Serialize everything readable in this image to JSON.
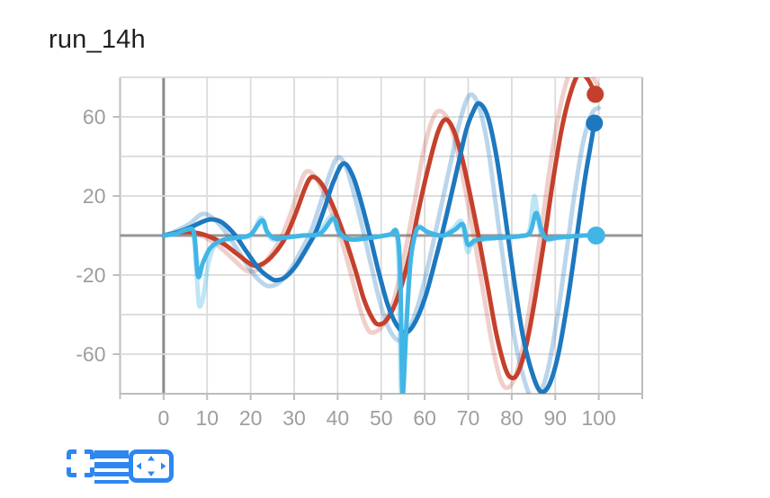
{
  "title": "run_14h",
  "toolbar": {
    "icon_color": "#2e86f0",
    "buttons": [
      {
        "name": "fullscreen"
      },
      {
        "name": "smoothing-lines"
      },
      {
        "name": "fit-to-frame"
      }
    ]
  },
  "chart_data": {
    "type": "line",
    "title": "run_14h",
    "grid": true,
    "legend_position": "none",
    "x_axis": {
      "min": -10,
      "max": 110,
      "gridline_step": 10,
      "ticks": [
        0,
        10,
        20,
        30,
        40,
        50,
        60,
        70,
        80,
        90,
        100
      ],
      "tick_labels": [
        "0",
        "10",
        "20",
        "30",
        "40",
        "50",
        "60",
        "70",
        "80",
        "90",
        "100"
      ]
    },
    "y_axis": {
      "min": -80,
      "max": 80,
      "gridline_step": 20,
      "ticks": [
        60,
        20,
        -20,
        -60
      ],
      "tick_labels": [
        "60",
        "20",
        "-20",
        "-60"
      ]
    },
    "style": {
      "grid_color": "#dadada",
      "border_color": "#bdbdbd",
      "zero_line_color": "#969696",
      "x0_line_color": "#8a8a8a",
      "tick_label_color": "#9e9e9e",
      "tick_font_size": 23
    },
    "series": [
      {
        "name": "run-red-original",
        "color": "#c5402c",
        "opacity": 0.25,
        "width": 5,
        "points": [
          [
            0,
            0
          ],
          [
            2,
            1
          ],
          [
            4,
            2.2
          ],
          [
            7,
            1.5
          ],
          [
            10,
            -1.5
          ],
          [
            13,
            -6
          ],
          [
            16,
            -12
          ],
          [
            19.3,
            -18
          ],
          [
            22,
            -16.5
          ],
          [
            24.5,
            -10
          ],
          [
            27,
            -1
          ],
          [
            29.5,
            13
          ],
          [
            31.5,
            27
          ],
          [
            33,
            32.5
          ],
          [
            35,
            29
          ],
          [
            37.5,
            18
          ],
          [
            40.5,
            0
          ],
          [
            43,
            -19
          ],
          [
            45,
            -36
          ],
          [
            46.8,
            -47
          ],
          [
            48.3,
            -49
          ],
          [
            50.5,
            -45
          ],
          [
            53,
            -32
          ],
          [
            55.5,
            -8
          ],
          [
            57.5,
            15
          ],
          [
            59.5,
            40
          ],
          [
            61.5,
            57
          ],
          [
            63.3,
            63
          ],
          [
            65.5,
            58
          ],
          [
            67.5,
            43
          ],
          [
            69.5,
            21
          ],
          [
            71.5,
            -3
          ],
          [
            73.5,
            -29
          ],
          [
            75.5,
            -55
          ],
          [
            77.3,
            -72
          ],
          [
            78.8,
            -77
          ],
          [
            80.5,
            -73
          ],
          [
            82.5,
            -57
          ],
          [
            84.5,
            -31
          ],
          [
            86.5,
            -1
          ],
          [
            88.5,
            30
          ],
          [
            90.5,
            58
          ],
          [
            92.5,
            77
          ],
          [
            94.5,
            88
          ],
          [
            97,
            85
          ],
          [
            99.8,
            76
          ]
        ]
      },
      {
        "name": "run-blue-original",
        "color": "#1d78bf",
        "opacity": 0.3,
        "width": 5,
        "points": [
          [
            0,
            0
          ],
          [
            2.5,
            2
          ],
          [
            6,
            6
          ],
          [
            8.9,
            10.9
          ],
          [
            11.5,
            8.5
          ],
          [
            14.5,
            1
          ],
          [
            17.5,
            -9
          ],
          [
            20.5,
            -19
          ],
          [
            23,
            -24.5
          ],
          [
            24.8,
            -25.5
          ],
          [
            27,
            -23
          ],
          [
            29.5,
            -16
          ],
          [
            32,
            -6
          ],
          [
            34,
            3
          ],
          [
            36,
            16
          ],
          [
            38,
            30
          ],
          [
            40,
            39.5
          ],
          [
            42,
            34
          ],
          [
            44,
            19
          ],
          [
            46,
            1
          ],
          [
            48,
            -18
          ],
          [
            50,
            -36
          ],
          [
            52,
            -48
          ],
          [
            54,
            -53
          ],
          [
            56,
            -49
          ],
          [
            58.5,
            -35
          ],
          [
            61,
            -13
          ],
          [
            63.5,
            12
          ],
          [
            66,
            37
          ],
          [
            68,
            57
          ],
          [
            70.3,
            71
          ],
          [
            72.5,
            65
          ],
          [
            74.5,
            45
          ],
          [
            76.5,
            13
          ],
          [
            78.5,
            -20
          ],
          [
            80.5,
            -50
          ],
          [
            82.5,
            -70
          ],
          [
            84.5,
            -82
          ],
          [
            86.5,
            -80
          ],
          [
            88.5,
            -66
          ],
          [
            90.5,
            -41
          ],
          [
            92.5,
            -10
          ],
          [
            94.5,
            22
          ],
          [
            96.5,
            48
          ],
          [
            98.5,
            62
          ],
          [
            100,
            64.5
          ]
        ]
      },
      {
        "name": "run-cyan-original",
        "color": "#41b6e6",
        "opacity": 0.35,
        "width": 5,
        "points": [
          [
            0,
            0
          ],
          [
            3,
            1.5
          ],
          [
            5.5,
            3.5
          ],
          [
            6.8,
            1
          ],
          [
            7.6,
            -20
          ],
          [
            8.2,
            -35.5
          ],
          [
            9.2,
            -30
          ],
          [
            10.2,
            -15
          ],
          [
            11.5,
            -6
          ],
          [
            13,
            -3
          ],
          [
            16,
            -1.5
          ],
          [
            20,
            0
          ],
          [
            22.3,
            9
          ],
          [
            23.5,
            2.5
          ],
          [
            25,
            -2
          ],
          [
            28,
            -1
          ],
          [
            32,
            0
          ],
          [
            35.5,
            1.5
          ],
          [
            38.7,
            10
          ],
          [
            40,
            2.5
          ],
          [
            41.5,
            -1.5
          ],
          [
            44,
            -2
          ],
          [
            48,
            -1
          ],
          [
            52,
            0.5
          ],
          [
            53.3,
            2
          ],
          [
            54,
            -15
          ],
          [
            54.6,
            -80
          ],
          [
            55.6,
            -55
          ],
          [
            56.5,
            -18
          ],
          [
            57.5,
            0
          ],
          [
            58.5,
            5
          ],
          [
            60,
            2.5
          ],
          [
            62,
            0.5
          ],
          [
            64,
            0
          ],
          [
            66.5,
            3.5
          ],
          [
            68.5,
            7
          ],
          [
            69.8,
            -8
          ],
          [
            71,
            -4
          ],
          [
            74,
            -2
          ],
          [
            78,
            -1
          ],
          [
            82,
            0
          ],
          [
            84,
            2
          ],
          [
            85.2,
            20
          ],
          [
            86.3,
            5
          ],
          [
            87.5,
            -2
          ],
          [
            90,
            -1.5
          ],
          [
            93,
            -0.5
          ],
          [
            96,
            0
          ],
          [
            100,
            0
          ]
        ]
      },
      {
        "name": "run-red-smoothed",
        "color": "#c5402c",
        "opacity": 1,
        "width": 5,
        "end_dot": {
          "x": 99.2,
          "y": 71.4,
          "r": 9.5
        },
        "points": [
          [
            0,
            0
          ],
          [
            2,
            0.8
          ],
          [
            5,
            1.8
          ],
          [
            8,
            1.2
          ],
          [
            11,
            -1
          ],
          [
            14,
            -4.5
          ],
          [
            17,
            -9.5
          ],
          [
            20.5,
            -15
          ],
          [
            23,
            -14
          ],
          [
            25.5,
            -9
          ],
          [
            28,
            -1
          ],
          [
            30.5,
            12
          ],
          [
            32.5,
            24
          ],
          [
            34,
            29.5
          ],
          [
            36,
            27
          ],
          [
            38.5,
            17
          ],
          [
            41.5,
            0
          ],
          [
            44,
            -17
          ],
          [
            46,
            -32
          ],
          [
            48,
            -42
          ],
          [
            49.5,
            -45
          ],
          [
            51.5,
            -42
          ],
          [
            54,
            -30
          ],
          [
            56.5,
            -10
          ],
          [
            58.5,
            12
          ],
          [
            61,
            36
          ],
          [
            63,
            52
          ],
          [
            64.7,
            58.6
          ],
          [
            66.5,
            54
          ],
          [
            68.5,
            40
          ],
          [
            70.5,
            20
          ],
          [
            72.5,
            -2
          ],
          [
            74.5,
            -26
          ],
          [
            76.5,
            -50
          ],
          [
            78.5,
            -67
          ],
          [
            80,
            -72
          ],
          [
            81.5,
            -69
          ],
          [
            83.5,
            -54
          ],
          [
            85.5,
            -30
          ],
          [
            87.5,
            -2
          ],
          [
            89.5,
            28
          ],
          [
            91.5,
            54
          ],
          [
            93.5,
            72
          ],
          [
            95.5,
            82
          ],
          [
            97.5,
            79
          ],
          [
            99.2,
            71.4
          ]
        ]
      },
      {
        "name": "run-blue-smoothed",
        "color": "#1d78bf",
        "opacity": 1,
        "width": 5,
        "end_dot": {
          "x": 99,
          "y": 56.8,
          "r": 9.5
        },
        "points": [
          [
            0,
            0
          ],
          [
            3,
            1.5
          ],
          [
            6,
            4
          ],
          [
            9,
            7
          ],
          [
            11,
            8.2
          ],
          [
            13.5,
            6.5
          ],
          [
            16.5,
            0
          ],
          [
            19,
            -8
          ],
          [
            22,
            -17
          ],
          [
            24.5,
            -21.5
          ],
          [
            26,
            -22.6
          ],
          [
            28,
            -21
          ],
          [
            30.5,
            -15
          ],
          [
            33,
            -6
          ],
          [
            35,
            2
          ],
          [
            37,
            14
          ],
          [
            39,
            27
          ],
          [
            41.3,
            36.4
          ],
          [
            43.5,
            30
          ],
          [
            45.5,
            16
          ],
          [
            47.5,
            -1
          ],
          [
            49.5,
            -19
          ],
          [
            51.5,
            -35
          ],
          [
            53.5,
            -45
          ],
          [
            55.5,
            -49
          ],
          [
            57.5,
            -45
          ],
          [
            60,
            -32
          ],
          [
            62.5,
            -12
          ],
          [
            65,
            10
          ],
          [
            67.5,
            34
          ],
          [
            69.5,
            53
          ],
          [
            71,
            62
          ],
          [
            72.5,
            66.8
          ],
          [
            74.5,
            60
          ],
          [
            76.5,
            40
          ],
          [
            78.5,
            10
          ],
          [
            80.5,
            -22
          ],
          [
            82.5,
            -50
          ],
          [
            84.5,
            -68
          ],
          [
            86.5,
            -78.6
          ],
          [
            88.5,
            -76
          ],
          [
            90.5,
            -62
          ],
          [
            92.5,
            -38
          ],
          [
            94.5,
            -8
          ],
          [
            96.5,
            24
          ],
          [
            98,
            44
          ],
          [
            99,
            56.8
          ]
        ]
      },
      {
        "name": "run-cyan-smoothed",
        "color": "#41b6e6",
        "opacity": 1,
        "width": 5,
        "end_dot": {
          "x": 99.4,
          "y": 0,
          "r": 10
        },
        "points": [
          [
            0,
            0
          ],
          [
            3,
            1
          ],
          [
            5.5,
            3
          ],
          [
            7,
            1
          ],
          [
            7.9,
            -20.5
          ],
          [
            9,
            -14
          ],
          [
            10.5,
            -7
          ],
          [
            12,
            -4
          ],
          [
            14,
            -2
          ],
          [
            17,
            -1
          ],
          [
            20,
            0.5
          ],
          [
            22.6,
            7.7
          ],
          [
            23.8,
            2
          ],
          [
            25.5,
            -1.5
          ],
          [
            28,
            -1
          ],
          [
            32,
            0
          ],
          [
            36,
            1
          ],
          [
            39,
            8.6
          ],
          [
            40.3,
            2
          ],
          [
            42,
            -1.5
          ],
          [
            44.5,
            -2
          ],
          [
            48,
            -1
          ],
          [
            52,
            0.5
          ],
          [
            53.6,
            1.5
          ],
          [
            54.4,
            -20
          ],
          [
            54.9,
            -79.5
          ],
          [
            55.8,
            -45
          ],
          [
            56.8,
            -12
          ],
          [
            58,
            2
          ],
          [
            59,
            4
          ],
          [
            60.5,
            2
          ],
          [
            62.5,
            0.5
          ],
          [
            64.5,
            0
          ],
          [
            67,
            3
          ],
          [
            68.8,
            5.5
          ],
          [
            69.9,
            -4.5
          ],
          [
            71.5,
            -2.5
          ],
          [
            74,
            -1.5
          ],
          [
            78,
            -1
          ],
          [
            82,
            -0.3
          ],
          [
            84.2,
            1.5
          ],
          [
            85.6,
            11.4
          ],
          [
            86.8,
            3
          ],
          [
            88,
            -1.5
          ],
          [
            90.5,
            -1
          ],
          [
            93.5,
            -0.5
          ],
          [
            96.5,
            0
          ],
          [
            99.4,
            0
          ]
        ]
      }
    ]
  }
}
